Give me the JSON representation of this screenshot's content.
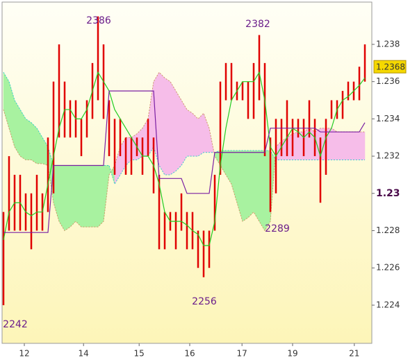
{
  "chart_data": {
    "type": "ichimoku",
    "xlim": [
      -0.25,
      66.25
    ],
    "ylim": [
      1.22195,
      1.24027
    ],
    "yticks": [
      1.224,
      1.226,
      1.228,
      {
        "value": 1.23,
        "label": "1.23",
        "bold": true
      },
      1.232,
      1.234,
      1.236,
      1.238
    ],
    "xticks": [
      {
        "value": 3.75,
        "label": "12"
      },
      {
        "value": 14.4,
        "label": "14"
      },
      {
        "value": 24.4,
        "label": "15"
      },
      {
        "value": 33.5,
        "label": "16"
      },
      {
        "value": 42.9,
        "label": "17"
      },
      {
        "value": 52,
        "label": "19"
      },
      {
        "value": 63.1,
        "label": "21"
      }
    ],
    "price": {
      "color": "#e00000",
      "high": [
        1.229,
        1.232,
        1.231,
        1.231,
        1.23,
        1.23,
        1.231,
        1.23,
        1.233,
        1.236,
        1.238,
        1.236,
        1.235,
        1.235,
        1.234,
        1.235,
        1.237,
        1.2395,
        1.238,
        1.235,
        1.234,
        1.234,
        1.233,
        1.233,
        1.233,
        1.233,
        1.234,
        1.233,
        1.231,
        1.229,
        1.229,
        1.229,
        1.23,
        1.229,
        1.229,
        1.228,
        1.228,
        1.228,
        1.231,
        1.236,
        1.237,
        1.237,
        1.236,
        1.236,
        1.236,
        1.237,
        1.2385,
        1.237,
        1.233,
        1.234,
        1.234,
        1.235,
        1.234,
        1.234,
        1.234,
        1.235,
        1.234,
        1.233,
        1.234,
        1.235,
        1.235,
        1.2355,
        1.236,
        1.236,
        1.2368,
        1.238
      ],
      "low": [
        1.224,
        1.228,
        1.228,
        1.228,
        1.228,
        1.227,
        1.228,
        1.228,
        1.229,
        1.23,
        1.233,
        1.233,
        1.233,
        1.233,
        1.232,
        1.233,
        1.234,
        1.235,
        1.234,
        1.232,
        1.231,
        1.232,
        1.231,
        1.231,
        1.232,
        1.231,
        1.232,
        1.23,
        1.227,
        1.227,
        1.228,
        1.227,
        1.228,
        1.227,
        1.227,
        1.226,
        1.2255,
        1.226,
        1.228,
        1.231,
        1.235,
        1.235,
        1.235,
        1.235,
        1.234,
        1.234,
        1.235,
        1.232,
        1.229,
        1.23,
        1.232,
        1.232,
        1.232,
        1.233,
        1.232,
        1.233,
        1.232,
        1.2295,
        1.231,
        1.234,
        1.234,
        1.234,
        1.235,
        1.235,
        1.235,
        1.236
      ]
    },
    "lines": [
      {
        "color": "#22cc22",
        "values": [
          1.2275,
          1.229,
          1.2295,
          1.2295,
          1.229,
          1.2288,
          1.229,
          1.229,
          1.2305,
          1.232,
          1.2335,
          1.2345,
          1.2345,
          1.234,
          1.234,
          1.2345,
          1.2355,
          1.2365,
          1.236,
          1.2355,
          1.2345,
          1.234,
          1.2335,
          1.233,
          1.2325,
          1.232,
          1.232,
          1.2315,
          1.2305,
          1.229,
          1.2285,
          1.2285,
          1.2285,
          1.2283,
          1.228,
          1.2278,
          1.2272,
          1.2272,
          1.2285,
          1.2315,
          1.2335,
          1.235,
          1.2355,
          1.236,
          1.236,
          1.236,
          1.2365,
          1.235,
          1.2325,
          1.232,
          1.2325,
          1.233,
          1.2335,
          1.2333,
          1.233,
          1.2333,
          1.233,
          1.232,
          1.233,
          1.2335,
          1.2345,
          1.235,
          1.2352,
          1.2355,
          1.2358,
          1.2362
        ]
      },
      {
        "color": "#7a1fa2",
        "values": [
          1.2279,
          1.2279,
          1.2279,
          1.2279,
          1.2279,
          1.2279,
          1.2279,
          1.2279,
          1.2279,
          1.2315,
          1.2315,
          1.2315,
          1.2315,
          1.2315,
          1.2315,
          1.2315,
          1.2315,
          1.2315,
          1.2315,
          1.2355,
          1.2355,
          1.2355,
          1.2355,
          1.2355,
          1.2355,
          1.2355,
          1.2355,
          1.2355,
          1.2308,
          1.2308,
          1.2308,
          1.2308,
          1.2308,
          1.23,
          1.23,
          1.23,
          1.23,
          1.23,
          1.2322,
          1.2322,
          1.2322,
          1.2322,
          1.2322,
          1.2322,
          1.2322,
          1.2322,
          1.2322,
          1.2322,
          1.2335,
          1.2335,
          1.2335,
          1.2335,
          1.2335,
          1.2335,
          1.2335,
          1.2335,
          1.2335,
          1.2333,
          1.2333,
          1.2333,
          1.2333,
          1.2333,
          1.2333,
          1.2333,
          1.2333,
          1.2338
        ]
      }
    ],
    "cloud": {
      "up_color": "#a8f2a0",
      "down_color": "#f6bde9",
      "span_a_color": "#33cccc",
      "span_b_color": "#cc9966",
      "span_a": [
        1.2365,
        1.236,
        1.235,
        1.2345,
        1.234,
        1.2338,
        1.2335,
        1.233,
        1.2325,
        1.2315,
        1.2315,
        1.2315,
        1.2315,
        1.2315,
        1.2315,
        1.2315,
        1.2315,
        1.2315,
        1.2315,
        1.2315,
        1.2305,
        1.231,
        1.2315,
        1.2318,
        1.2318,
        1.232,
        1.232,
        1.2325,
        1.2315,
        1.231,
        1.231,
        1.2312,
        1.2315,
        1.232,
        1.232,
        1.232,
        1.2322,
        1.2322,
        1.2322,
        1.2323,
        1.2323,
        1.2323,
        1.2323,
        1.2323,
        1.2323,
        1.2323,
        1.2323,
        1.2323,
        1.2323,
        1.2318,
        1.2318,
        1.2318,
        1.2318,
        1.2318,
        1.2318,
        1.2318,
        1.2318,
        1.2318,
        1.2318,
        1.2318,
        1.2318,
        1.2318,
        1.2318,
        1.2318,
        1.2318,
        1.2318
      ],
      "span_b": [
        1.2345,
        1.2335,
        1.2325,
        1.232,
        1.2318,
        1.2318,
        1.2316,
        1.2316,
        1.2315,
        1.2295,
        1.2285,
        1.228,
        1.2282,
        1.2285,
        1.2282,
        1.2282,
        1.2282,
        1.2282,
        1.2285,
        1.231,
        1.2315,
        1.2325,
        1.233,
        1.233,
        1.2332,
        1.2335,
        1.234,
        1.236,
        1.2365,
        1.2362,
        1.236,
        1.2355,
        1.235,
        1.2345,
        1.2343,
        1.234,
        1.2343,
        1.2335,
        1.232,
        1.2315,
        1.231,
        1.2305,
        1.2295,
        1.2285,
        1.2287,
        1.229,
        1.2285,
        1.228,
        1.2285,
        1.2325,
        1.2328,
        1.233,
        1.2332,
        1.2333,
        1.2333,
        1.2335,
        1.2333,
        1.2335,
        1.2335,
        1.2335,
        1.2333,
        1.2333,
        1.2333,
        1.2333,
        1.2333,
        1.2333
      ]
    },
    "annotations": [
      "2386",
      "2382",
      "2289",
      "2256",
      "2242"
    ],
    "last_price": 1.2368
  }
}
